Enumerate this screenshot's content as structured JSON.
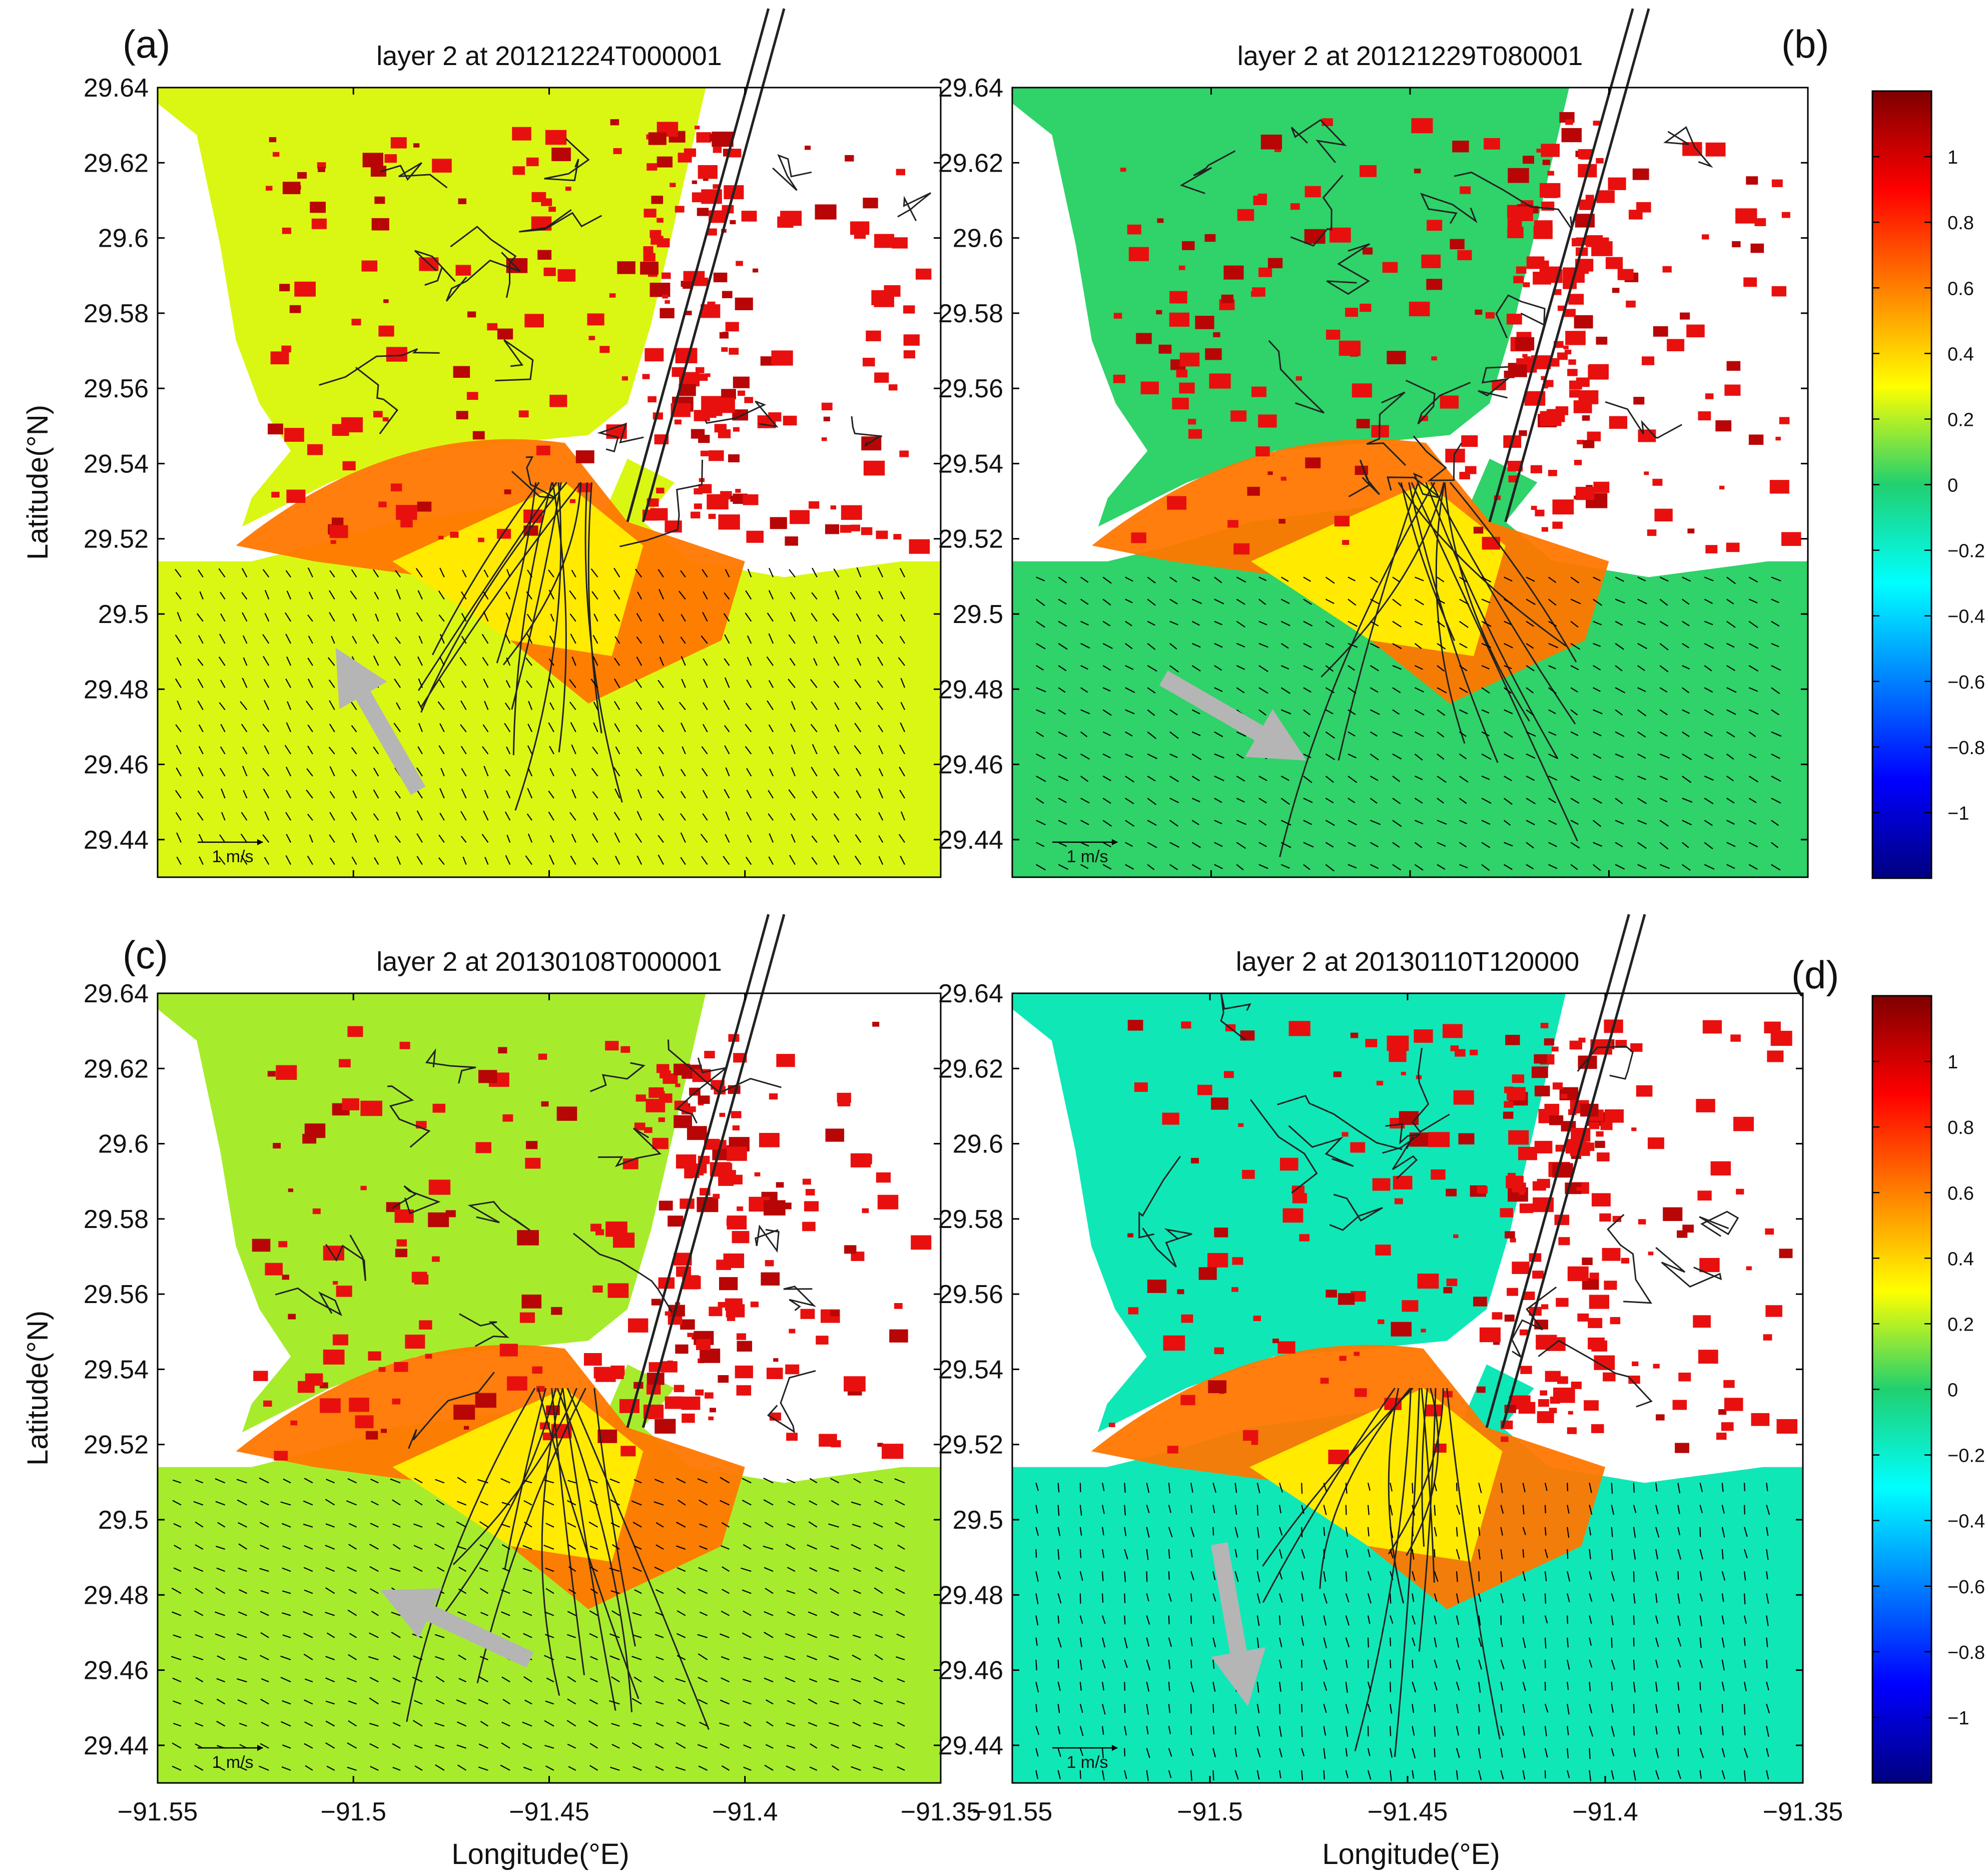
{
  "figure": {
    "xlabel": "Longitude(°E)",
    "ylabel": "Latitude(°N)",
    "x_ticks": [
      -91.55,
      -91.5,
      -91.45,
      -91.4,
      -91.35
    ],
    "y_ticks": [
      29.44,
      29.46,
      29.48,
      29.5,
      29.52,
      29.54,
      29.56,
      29.58,
      29.6,
      29.62,
      29.64
    ],
    "xlim": [
      -91.55,
      -91.35
    ],
    "ylim": [
      29.43,
      29.64
    ],
    "scale_label": "1 m/s"
  },
  "colorbar": {
    "ticks": [
      1,
      0.8,
      0.6,
      0.4,
      0.2,
      0,
      -0.2,
      -0.4,
      -0.6,
      -0.8,
      -1
    ],
    "range": [
      -1.2,
      1.2
    ]
  },
  "panels": [
    {
      "tag": "(a)",
      "title": "layer 2 at 20121224T000001",
      "water_level": 0.25,
      "arrow_direction_deg": 120
    },
    {
      "tag": "(b)",
      "title": "layer 2 at 20121229T080001",
      "water_level": 0.02,
      "arrow_direction_deg": -30
    },
    {
      "tag": "(c)",
      "title": "layer 2 at 20130108T000001",
      "water_level": 0.18,
      "arrow_direction_deg": 155
    },
    {
      "tag": "(d)",
      "title": "layer 2 at 20130110T120000",
      "water_level": -0.15,
      "arrow_direction_deg": -80
    }
  ],
  "chart_data": {
    "type": "heatmap",
    "title": "",
    "xlabel": "Longitude(°E)",
    "ylabel": "Latitude(°N)",
    "xlim": [
      -91.55,
      -91.35
    ],
    "ylim": [
      29.43,
      29.64
    ],
    "color_range": [
      -1.2,
      1.2
    ],
    "panels": [
      "layer 2 at 20121224T000001",
      "layer 2 at 20121229T080001",
      "layer 2 at 20130108T000001",
      "layer 2 at 20130110T120000"
    ],
    "open_water_level": [
      0.25,
      0.02,
      0.18,
      -0.15
    ],
    "wind_arrow_direction_deg": [
      120,
      -30,
      155,
      -80
    ]
  }
}
